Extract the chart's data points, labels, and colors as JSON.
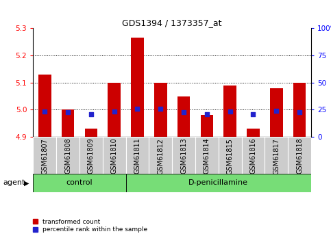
{
  "title": "GDS1394 / 1373357_at",
  "samples": [
    "GSM61807",
    "GSM61808",
    "GSM61809",
    "GSM61810",
    "GSM61811",
    "GSM61812",
    "GSM61813",
    "GSM61814",
    "GSM61815",
    "GSM61816",
    "GSM61817",
    "GSM61818"
  ],
  "red_values": [
    5.13,
    5.0,
    4.93,
    5.1,
    5.265,
    5.1,
    5.05,
    4.98,
    5.09,
    4.93,
    5.08,
    5.1
  ],
  "blue_values": [
    4.993,
    4.992,
    4.984,
    4.993,
    5.003,
    5.003,
    4.992,
    4.984,
    4.993,
    4.984,
    4.997,
    4.992
  ],
  "ymin": 4.9,
  "ymax": 5.3,
  "y_left_ticks": [
    4.9,
    5.0,
    5.1,
    5.2,
    5.3
  ],
  "y_right_ticks": [
    0,
    25,
    50,
    75,
    100
  ],
  "control_samples": 4,
  "control_label": "control",
  "treatment_label": "D-penicillamine",
  "agent_label": "agent",
  "legend_red": "transformed count",
  "legend_blue": "percentile rank within the sample",
  "bar_width": 0.55,
  "bar_color": "#cc0000",
  "blue_color": "#2222cc",
  "gray_bg": "#cccccc",
  "green_bg": "#77dd77",
  "title_fontsize": 9,
  "tick_fontsize": 7.5,
  "label_fontsize": 7,
  "agent_fontsize": 8
}
